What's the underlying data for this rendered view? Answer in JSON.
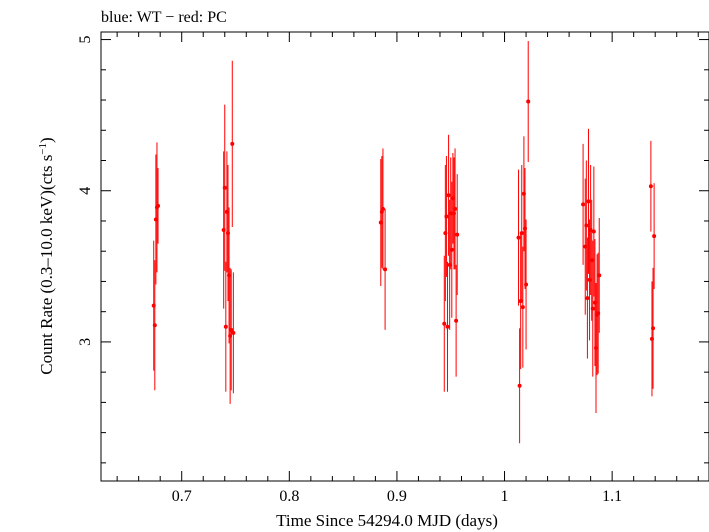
{
  "chart_data": {
    "type": "scatter",
    "title": "blue: WT − red: PC",
    "xlabel": "Time Since 54294.0 MJD (days)",
    "ylabel_main": "Count Rate (0.3–10.0 keV)(cts s",
    "ylabel_sup": "−1",
    "ylabel_end": ")",
    "xlim": [
      0.625,
      1.19
    ],
    "ylim": [
      2.08,
      5.05
    ],
    "x_ticks": [
      0.7,
      0.8,
      0.9,
      1.0,
      1.1
    ],
    "x_tick_labels": [
      "0.7",
      "0.8",
      "0.9",
      "1",
      "1.1"
    ],
    "y_ticks": [
      3,
      4,
      5
    ],
    "y_tick_labels": [
      "3",
      "4",
      "5"
    ],
    "grid": false,
    "colors": {
      "pc": "#ff0000",
      "wt": "#0000ff",
      "axis": "#000000"
    },
    "series": [
      {
        "name": "PC",
        "points": [
          [
            0.674,
            3.24,
            0.43
          ],
          [
            0.675,
            3.11,
            0.43
          ],
          [
            0.676,
            3.81,
            0.43
          ],
          [
            0.677,
            3.89,
            0.43
          ],
          [
            0.678,
            3.9,
            0.25
          ],
          [
            0.739,
            3.74,
            0.52
          ],
          [
            0.74,
            4.02,
            0.55
          ],
          [
            0.741,
            3.1,
            0.43
          ],
          [
            0.742,
            3.86,
            0.4
          ],
          [
            0.743,
            3.72,
            0.45
          ],
          [
            0.744,
            3.44,
            0.45
          ],
          [
            0.745,
            3.04,
            0.45
          ],
          [
            0.746,
            3.08,
            0.4
          ],
          [
            0.747,
            4.31,
            0.55
          ],
          [
            0.748,
            3.06,
            0.4
          ],
          [
            0.885,
            3.79,
            0.42
          ],
          [
            0.886,
            3.86,
            0.37
          ],
          [
            0.887,
            3.88,
            0.4
          ],
          [
            0.889,
            3.48,
            0.4
          ],
          [
            0.944,
            3.12,
            0.45
          ],
          [
            0.945,
            3.72,
            0.45
          ],
          [
            0.946,
            3.83,
            0.4
          ],
          [
            0.947,
            3.1,
            0.43
          ],
          [
            0.948,
            3.97,
            0.4
          ],
          [
            0.949,
            3.51,
            0.43
          ],
          [
            0.95,
            3.85,
            0.37
          ],
          [
            0.951,
            3.61,
            0.45
          ],
          [
            0.952,
            3.95,
            0.3
          ],
          [
            0.953,
            3.85,
            0.37
          ],
          [
            0.954,
            3.88,
            0.4
          ],
          [
            0.955,
            3.14,
            0.37
          ],
          [
            0.956,
            3.71,
            0.4
          ],
          [
            1.013,
            3.69,
            0.45
          ],
          [
            1.014,
            2.71,
            0.38
          ],
          [
            1.015,
            3.27,
            0.45
          ],
          [
            1.016,
            3.72,
            0.45
          ],
          [
            1.017,
            3.23,
            0.4
          ],
          [
            1.018,
            3.98,
            0.38
          ],
          [
            1.019,
            3.75,
            0.4
          ],
          [
            1.02,
            3.38,
            0.43
          ],
          [
            1.022,
            4.59,
            0.4
          ],
          [
            1.073,
            3.91,
            0.4
          ],
          [
            1.075,
            3.63,
            0.45
          ],
          [
            1.076,
            3.77,
            0.43
          ],
          [
            1.077,
            3.29,
            0.4
          ],
          [
            1.078,
            3.93,
            0.48
          ],
          [
            1.079,
            3.41,
            0.4
          ],
          [
            1.08,
            3.74,
            0.43
          ],
          [
            1.081,
            3.54,
            0.4
          ],
          [
            1.082,
            3.22,
            0.45
          ],
          [
            1.083,
            3.73,
            0.43
          ],
          [
            1.084,
            3.26,
            0.42
          ],
          [
            1.085,
            2.96,
            0.43
          ],
          [
            1.086,
            3.18,
            0.4
          ],
          [
            1.087,
            3.19,
            0.4
          ],
          [
            1.088,
            3.44,
            0.38
          ],
          [
            1.136,
            4.03,
            0.3
          ],
          [
            1.137,
            3.02,
            0.38
          ],
          [
            1.138,
            3.09,
            0.4
          ],
          [
            1.139,
            3.7,
            0.35
          ]
        ]
      }
    ]
  }
}
